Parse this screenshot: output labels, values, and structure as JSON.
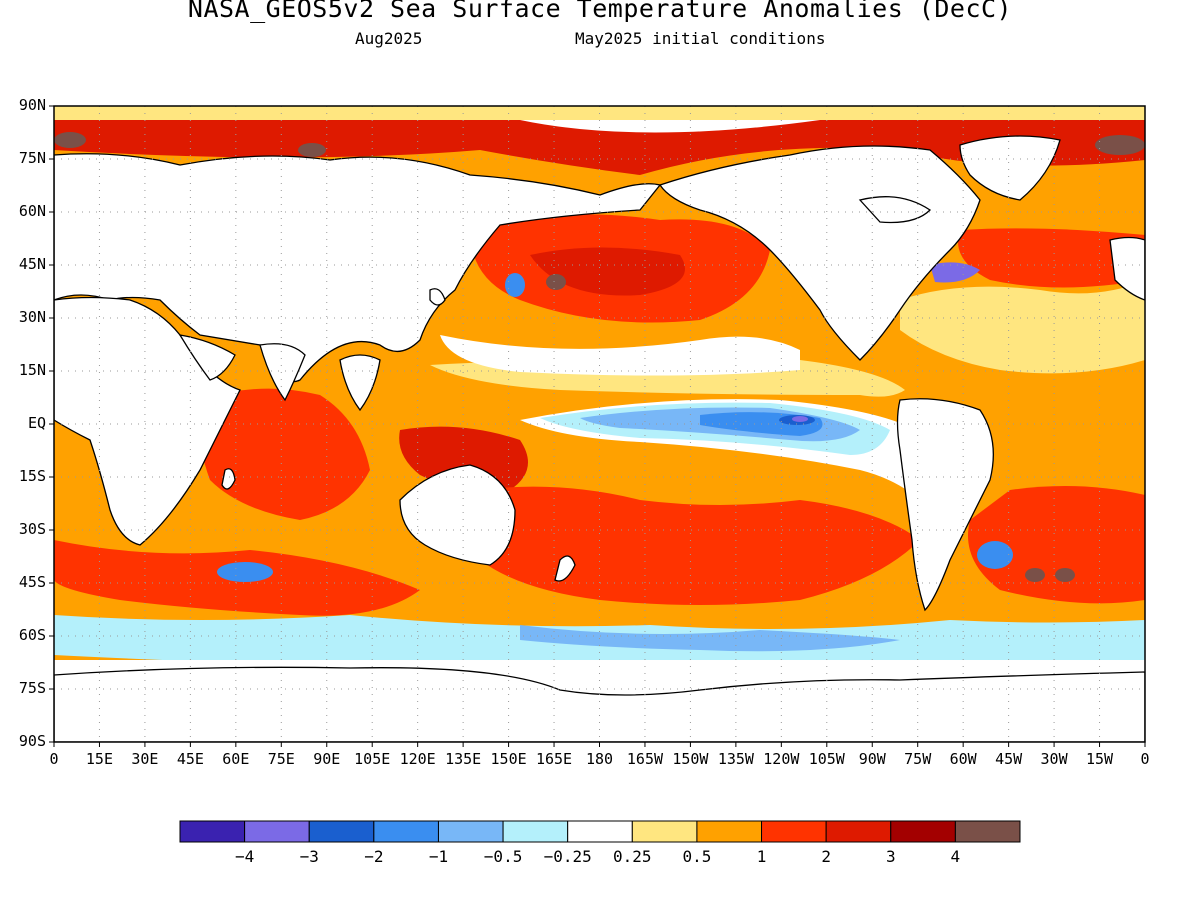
{
  "header": {
    "title": "NASA_GEOS5v2 Sea Surface Temperature Anomalies (DecC)",
    "valid_month": "Aug2025",
    "init_label": "May2025 initial conditions"
  },
  "map": {
    "lat_labels": [
      "90N",
      "75N",
      "60N",
      "45N",
      "30N",
      "15N",
      "EQ",
      "15S",
      "30S",
      "45S",
      "60S",
      "75S",
      "90S"
    ],
    "lon_labels": [
      "0",
      "15E",
      "30E",
      "45E",
      "60E",
      "75E",
      "90E",
      "105E",
      "120E",
      "135E",
      "150E",
      "165E",
      "180",
      "165W",
      "150W",
      "135W",
      "120W",
      "105W",
      "90W",
      "75W",
      "60W",
      "45W",
      "30W",
      "15W",
      "0"
    ],
    "colors": {
      "land": "#ffffff",
      "coast": "#000000",
      "frame": "#000000",
      "grid": "#9a9a9a"
    }
  },
  "colorbar": {
    "colors": [
      "#3a22b0",
      "#7b6ae6",
      "#1a5fcf",
      "#3a8ef0",
      "#78b7f7",
      "#b4f0fb",
      "#ffffff",
      "#ffe680",
      "#ffa100",
      "#ff3300",
      "#de1a00",
      "#a30000",
      "#7a5048"
    ],
    "labels": [
      "-4",
      "-3",
      "-2",
      "-1",
      "-0.5",
      "-0.25",
      "0.25",
      "0.5",
      "1",
      "2",
      "3",
      "4"
    ]
  },
  "legend_levels": [
    -4,
    -3,
    -2,
    -1,
    -0.5,
    -0.25,
    0.25,
    0.5,
    1,
    2,
    3,
    4
  ]
}
